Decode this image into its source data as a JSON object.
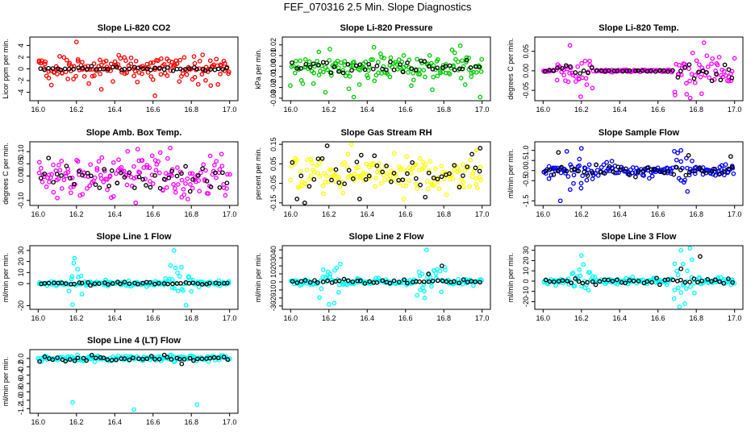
{
  "page": {
    "title": "FEF_070316  2.5 Min. Slope Diagnostics"
  },
  "chart_data": [
    {
      "type": "scatter",
      "title": "Slope Li-820 CO2",
      "xlabel": "",
      "ylabel": "Licor ppm per min.",
      "xlim": [
        16.0,
        17.0
      ],
      "ylim": [
        -5,
        5
      ],
      "xticks": [
        "16.0",
        "16.2",
        "16.4",
        "16.6",
        "16.8",
        "17.0"
      ],
      "yticks": [
        "-4",
        "-2",
        "0",
        "2",
        "4"
      ],
      "series": [
        {
          "color": "#ff0000",
          "spread": 1.2,
          "bursts": [],
          "outliers": [
            [
              16.2,
              4.6
            ],
            [
              16.61,
              -4.6
            ],
            [
              16.33,
              -3.5
            ]
          ],
          "count": 160
        },
        {
          "color": "#000000",
          "spread": 0.15,
          "bursts": [],
          "outliers": [],
          "count": 45
        }
      ]
    },
    {
      "type": "scatter",
      "title": "Slope Li-820 Pressure",
      "xlabel": "",
      "ylabel": "kPa per min.",
      "xlim": [
        16.0,
        17.0
      ],
      "ylim": [
        -0.03,
        0.025
      ],
      "xticks": [
        "16.0",
        "16.2",
        "16.4",
        "16.6",
        "16.8",
        "17.0"
      ],
      "yticks": [
        "-0.03",
        "-0.02",
        "-0.01",
        "0.00",
        "0.01",
        "0.02"
      ],
      "series": [
        {
          "color": "#00cc00",
          "spread": 0.008,
          "bursts": [],
          "outliers": [
            [
              16.33,
              -0.029
            ],
            [
              16.99,
              -0.029
            ],
            [
              16.74,
              -0.022
            ]
          ],
          "count": 160
        },
        {
          "color": "#000000",
          "spread": 0.003,
          "bursts": [],
          "outliers": [],
          "count": 45
        }
      ]
    },
    {
      "type": "scatter",
      "title": "Slope Li-820 Temp.",
      "xlabel": "",
      "ylabel": "degrees C per min.",
      "xlim": [
        16.0,
        17.0
      ],
      "ylim": [
        -0.07,
        0.08
      ],
      "xticks": [
        "16.0",
        "16.2",
        "16.4",
        "16.6",
        "16.8",
        "17.0"
      ],
      "yticks": [
        "-0.05",
        "0.00",
        "0.05"
      ],
      "series": [
        {
          "color": "#ff00ff",
          "spread": 0.0015,
          "bursts": [
            [
              16.07,
              16.26,
              0.025
            ],
            [
              16.68,
              17.0,
              0.03
            ]
          ],
          "outliers": [
            [
              16.14,
              0.065
            ],
            [
              16.75,
              -0.06
            ],
            [
              16.84,
              0.072
            ]
          ],
          "count": 160
        },
        {
          "color": "#000000",
          "spread": 0.001,
          "bursts": [
            [
              16.07,
              16.26,
              0.012
            ],
            [
              16.68,
              17.0,
              0.015
            ]
          ],
          "outliers": [],
          "count": 45
        }
      ]
    },
    {
      "type": "scatter",
      "title": "Slope Amb. Box Temp.",
      "xlabel": "",
      "ylabel": "degrees C per min.",
      "xlim": [
        16.0,
        17.0
      ],
      "ylim": [
        -0.11,
        0.13
      ],
      "xticks": [
        "16.0",
        "16.2",
        "16.4",
        "16.6",
        "16.8",
        "17.0"
      ],
      "yticks": [
        "-0.10",
        "0.00",
        "0.05",
        "0.10"
      ],
      "series": [
        {
          "color": "#ff00ff",
          "spread": 0.045,
          "bursts": [],
          "outliers": [
            [
              16.1,
              -0.09
            ],
            [
              16.69,
              0.115
            ],
            [
              16.52,
              0.11
            ]
          ],
          "count": 160
        },
        {
          "color": "#000000",
          "spread": 0.03,
          "bursts": [],
          "outliers": [],
          "count": 45
        }
      ]
    },
    {
      "type": "scatter",
      "title": "Slope Gas Stream RH",
      "xlabel": "",
      "ylabel": "percent per min.",
      "xlim": [
        16.0,
        17.0
      ],
      "ylim": [
        -0.15,
        0.15
      ],
      "xticks": [
        "16.0",
        "16.2",
        "16.4",
        "16.6",
        "16.8",
        "17.0"
      ],
      "yticks": [
        "-0.15",
        "-0.05",
        "0.05",
        "0.15"
      ],
      "series": [
        {
          "color": "#ffff00",
          "spread": 0.05,
          "bursts": [],
          "outliers": [
            [
              16.97,
              0.12
            ],
            [
              16.59,
              -0.13
            ]
          ],
          "count": 160
        },
        {
          "color": "#000000",
          "spread": 0.05,
          "bursts": [],
          "outliers": [
            [
              16.99,
              0.13
            ],
            [
              16.36,
              -0.13
            ]
          ],
          "count": 45
        }
      ]
    },
    {
      "type": "scatter",
      "title": "Slope Sample Flow",
      "xlabel": "",
      "ylabel": "ml/min per min.",
      "xlim": [
        16.0,
        17.0
      ],
      "ylim": [
        -1.6,
        1.3
      ],
      "xticks": [
        "16.0",
        "16.2",
        "16.4",
        "16.6",
        "16.8",
        "17.0"
      ],
      "yticks": [
        "-1.5",
        "-0.5",
        "0.0",
        "0.5",
        "1.0"
      ],
      "series": [
        {
          "color": "#0000ff",
          "spread": 0.15,
          "bursts": [
            [
              16.12,
              16.24,
              0.6
            ],
            [
              16.68,
              16.78,
              0.5
            ]
          ],
          "outliers": [
            [
              16.2,
              1.1
            ],
            [
              16.09,
              -1.5
            ],
            [
              16.72,
              1.0
            ]
          ],
          "count": 170
        },
        {
          "color": "#000000",
          "spread": 0.15,
          "bursts": [],
          "outliers": [
            [
              16.08,
              0.9
            ],
            [
              16.98,
              0.7
            ],
            [
              16.76,
              0.75
            ]
          ],
          "count": 45
        }
      ]
    },
    {
      "type": "scatter",
      "title": "Slope Line 1 Flow",
      "xlabel": "",
      "ylabel": "ml/min per min.",
      "xlim": [
        16.0,
        17.0
      ],
      "ylim": [
        -21,
        32
      ],
      "xticks": [
        "16.0",
        "16.2",
        "16.4",
        "16.6",
        "16.8",
        "17.0"
      ],
      "yticks": [
        "-20",
        "0",
        "10",
        "20",
        "30"
      ],
      "series": [
        {
          "color": "#00ffff",
          "spread": 1.2,
          "bursts": [
            [
              16.16,
              16.24,
              11
            ],
            [
              16.66,
              16.8,
              8
            ]
          ],
          "outliers": [
            [
              16.19,
              23
            ],
            [
              16.71,
              30
            ],
            [
              16.18,
              -19
            ]
          ],
          "count": 170
        },
        {
          "color": "#000000",
          "spread": 0.6,
          "bursts": [],
          "outliers": [],
          "count": 45
        }
      ]
    },
    {
      "type": "scatter",
      "title": "Slope Line 2 Flow",
      "xlabel": "",
      "ylabel": "ml/min per min.",
      "xlim": [
        16.0,
        17.0
      ],
      "ylim": [
        -31,
        42
      ],
      "xticks": [
        "16.0",
        "16.2",
        "16.4",
        "16.6",
        "16.8",
        "17.0"
      ],
      "yticks": [
        "-30",
        "-20",
        "-10",
        "0",
        "10",
        "20",
        "30",
        "40"
      ],
      "series": [
        {
          "color": "#00ffff",
          "spread": 2.0,
          "bursts": [
            [
              16.14,
              16.26,
              13
            ],
            [
              16.66,
              16.82,
              10
            ]
          ],
          "outliers": [
            [
              16.71,
              40
            ],
            [
              16.2,
              -28
            ],
            [
              16.7,
              -20
            ]
          ],
          "count": 170
        },
        {
          "color": "#000000",
          "spread": 1.2,
          "bursts": [],
          "outliers": [
            [
              16.79,
              20
            ],
            [
              16.72,
              10
            ]
          ],
          "count": 45
        }
      ]
    },
    {
      "type": "scatter",
      "title": "Slope Line 3 Flow",
      "xlabel": "",
      "ylabel": "ml/min per min.",
      "xlim": [
        16.0,
        17.0
      ],
      "ylim": [
        -25,
        32
      ],
      "xticks": [
        "16.0",
        "16.2",
        "16.4",
        "16.6",
        "16.8",
        "17.0"
      ],
      "yticks": [
        "-20",
        "-10",
        "0",
        "10",
        "20",
        "30"
      ],
      "series": [
        {
          "color": "#00ffff",
          "spread": 1.8,
          "bursts": [
            [
              16.15,
              16.25,
              10
            ],
            [
              16.68,
              16.8,
              12
            ]
          ],
          "outliers": [
            [
              16.2,
              25
            ],
            [
              16.72,
              30
            ],
            [
              16.74,
              -22
            ]
          ],
          "count": 170
        },
        {
          "color": "#000000",
          "spread": 1.2,
          "bursts": [],
          "outliers": [
            [
              16.82,
              24
            ],
            [
              16.72,
              12
            ]
          ],
          "count": 45
        }
      ]
    },
    {
      "type": "scatter",
      "title": "Slope Line 4 (LT) Flow",
      "xlabel": "",
      "ylabel": "ml/min per min.",
      "xlim": [
        16.0,
        17.0
      ],
      "ylim": [
        -1.25,
        0.15
      ],
      "xticks": [
        "16.0",
        "16.2",
        "16.4",
        "16.6",
        "16.8",
        "17.0"
      ],
      "yticks": [
        "-1.2",
        "-1.0",
        "-0.8",
        "-0.6",
        "-0.4",
        "-0.2",
        "0.0"
      ],
      "series": [
        {
          "color": "#00ffff",
          "spread": 0.035,
          "bursts": [],
          "outliers": [
            [
              16.18,
              -1.05
            ],
            [
              16.5,
              -1.22
            ],
            [
              16.83,
              -1.1
            ],
            [
              16.71,
              -0.08
            ]
          ],
          "count": 170
        },
        {
          "color": "#000000",
          "spread": 0.03,
          "bursts": [],
          "outliers": [
            [
              16.75,
              -0.13
            ]
          ],
          "count": 45
        }
      ]
    }
  ]
}
